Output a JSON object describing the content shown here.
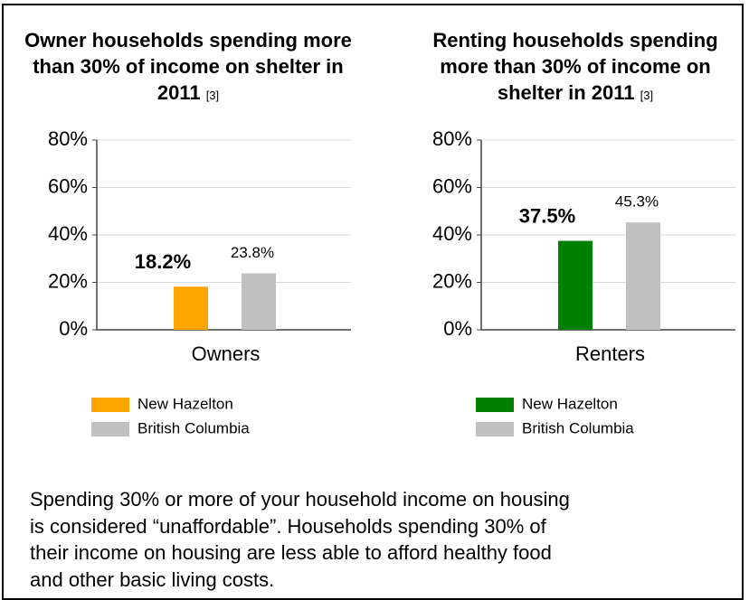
{
  "chart_data": [
    {
      "type": "bar",
      "title": "Owner households spending more than 30% of income on shelter in 2011",
      "reference": "[3]",
      "categories": [
        "Owners"
      ],
      "series": [
        {
          "name": "New Hazelton",
          "color": "#ffa500",
          "values": [
            18.2
          ],
          "value_labels": [
            "18.2%"
          ]
        },
        {
          "name": "British Columbia",
          "color": "#c0c0c0",
          "values": [
            23.8
          ],
          "value_labels": [
            "23.8%"
          ]
        }
      ],
      "ylim": [
        0,
        80
      ],
      "yticks": [
        {
          "value": 0,
          "label": "0%"
        },
        {
          "value": 20,
          "label": "20%"
        },
        {
          "value": 40,
          "label": "40%"
        },
        {
          "value": 60,
          "label": "60%"
        },
        {
          "value": 80,
          "label": "80%"
        }
      ],
      "grid": true,
      "legend": "bottom"
    },
    {
      "type": "bar",
      "title": "Renting households spending more than 30% of income on shelter in 2011",
      "reference": "[3]",
      "categories": [
        "Renters"
      ],
      "series": [
        {
          "name": "New Hazelton",
          "color": "#008000",
          "values": [
            37.5
          ],
          "value_labels": [
            "37.5%"
          ]
        },
        {
          "name": "British Columbia",
          "color": "#c0c0c0",
          "values": [
            45.3
          ],
          "value_labels": [
            "45.3%"
          ]
        }
      ],
      "ylim": [
        0,
        80
      ],
      "yticks": [
        {
          "value": 0,
          "label": "0%"
        },
        {
          "value": 20,
          "label": "20%"
        },
        {
          "value": 40,
          "label": "40%"
        },
        {
          "value": 60,
          "label": "60%"
        },
        {
          "value": 80,
          "label": "80%"
        }
      ],
      "grid": true,
      "legend": "bottom"
    }
  ],
  "note": "Spending 30% or more of your household income on housing is considered “unaffordable”. Households spending 30% of their income on housing are less able to afford healthy food and other basic living costs."
}
